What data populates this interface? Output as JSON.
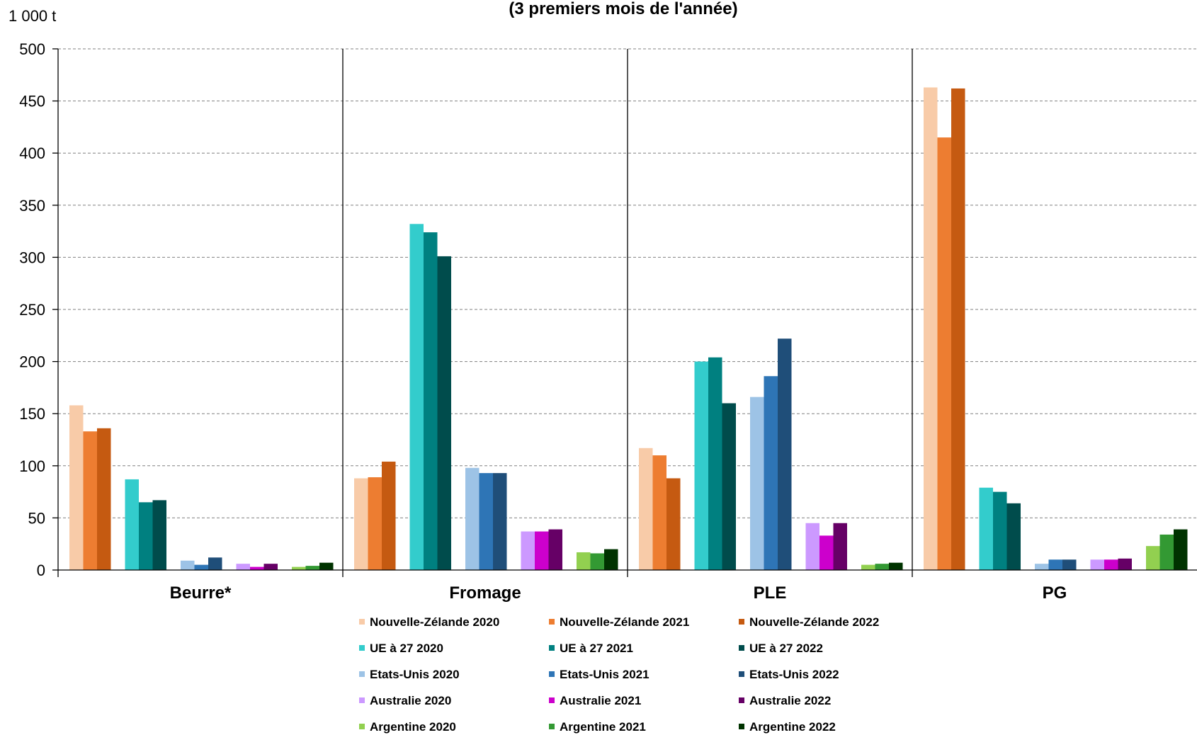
{
  "chart_data": {
    "type": "bar",
    "subtitle": "(3 premiers mois de l'année)",
    "unit_label": "1 000 t",
    "ylim": [
      0,
      500
    ],
    "yticks": [
      0,
      50,
      100,
      150,
      200,
      250,
      300,
      350,
      400,
      450,
      500
    ],
    "grid": true,
    "legend_position": "bottom",
    "categories": [
      "Beurre*",
      "Fromage",
      "PLE",
      "PG"
    ],
    "series": [
      {
        "name": "Nouvelle-Zélande 2020",
        "color": "#F8CBA8",
        "values": [
          158,
          88,
          117,
          463
        ]
      },
      {
        "name": "Nouvelle-Zélande 2021",
        "color": "#ED7D31",
        "values": [
          133,
          89,
          110,
          415
        ]
      },
      {
        "name": "Nouvelle-Zélande 2022",
        "color": "#C55A11",
        "values": [
          136,
          104,
          88,
          462
        ]
      },
      {
        "name": "UE à 27 2020",
        "color": "#33CCCC",
        "values": [
          87,
          332,
          200,
          79
        ]
      },
      {
        "name": "UE à 27 2021",
        "color": "#008080",
        "values": [
          65,
          324,
          204,
          75
        ]
      },
      {
        "name": "UE à 27 2022",
        "color": "#004C4C",
        "values": [
          67,
          301,
          160,
          64
        ]
      },
      {
        "name": "Etats-Unis 2020",
        "color": "#9DC3E6",
        "values": [
          9,
          98,
          166,
          6
        ]
      },
      {
        "name": "Etats-Unis 2021",
        "color": "#2E75B6",
        "values": [
          5,
          93,
          186,
          10
        ]
      },
      {
        "name": "Etats-Unis 2022",
        "color": "#1F4E79",
        "values": [
          12,
          93,
          222,
          10
        ]
      },
      {
        "name": "Australie 2020",
        "color": "#CC99FF",
        "values": [
          6,
          37,
          45,
          10
        ]
      },
      {
        "name": "Australie 2021",
        "color": "#CC00CC",
        "values": [
          3,
          37,
          33,
          10
        ]
      },
      {
        "name": "Australie 2022",
        "color": "#660066",
        "values": [
          6,
          39,
          45,
          11
        ]
      },
      {
        "name": "Argentine 2020",
        "color": "#92D050",
        "values": [
          3,
          17,
          5,
          23
        ]
      },
      {
        "name": "Argentine 2021",
        "color": "#339933",
        "values": [
          4,
          16,
          6,
          34
        ]
      },
      {
        "name": "Argentine 2022",
        "color": "#003300",
        "values": [
          7,
          20,
          7,
          39
        ]
      }
    ]
  }
}
